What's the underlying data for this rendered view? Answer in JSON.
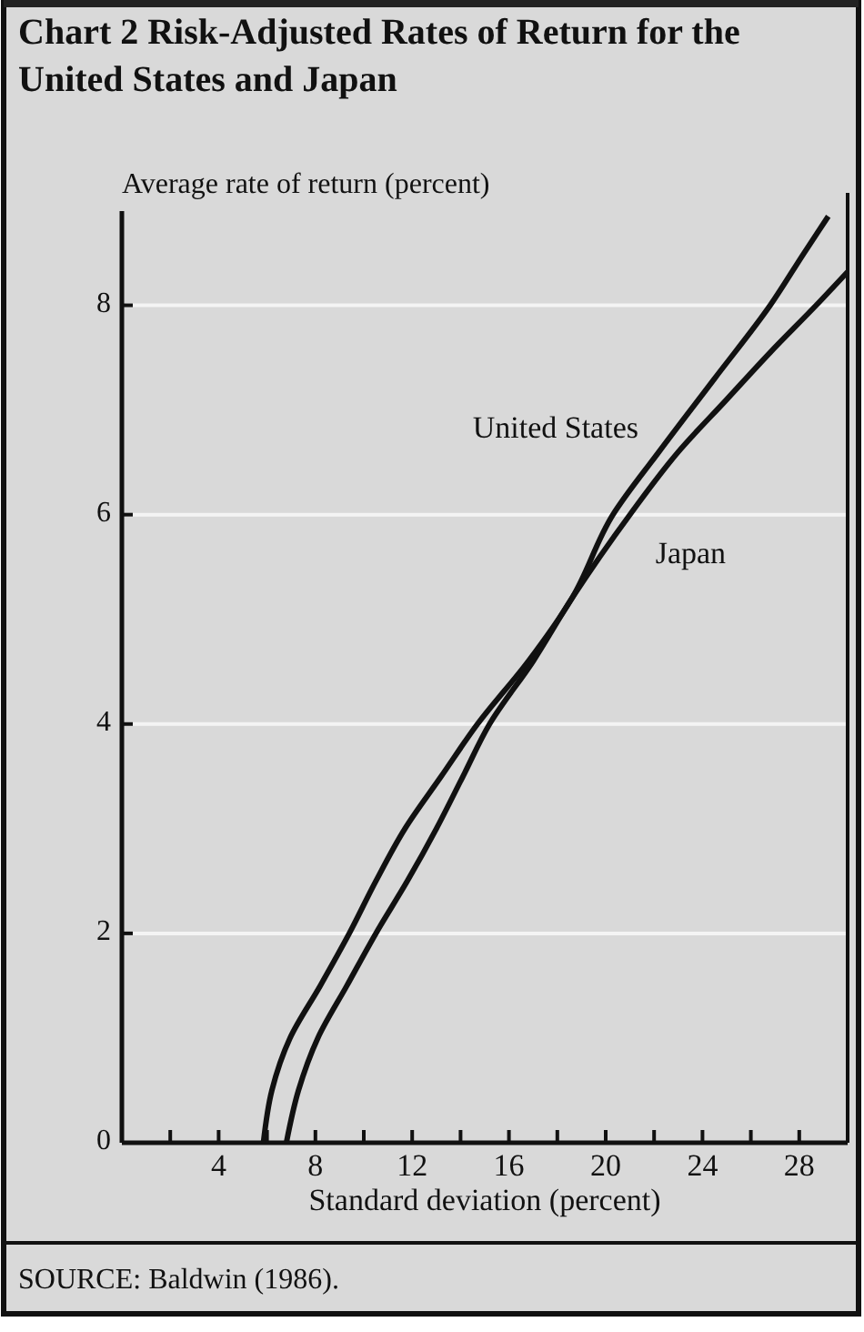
{
  "chart_data": {
    "type": "line",
    "title": "Chart 2  Risk-Adjusted Rates of Return for the United States and Japan",
    "ylabel": "Average rate of return (percent)",
    "xlabel": "Standard deviation (percent)",
    "annotations": [
      "SOURCE: Baldwin (1986)."
    ],
    "xlim": [
      0,
      30
    ],
    "ylim": [
      0,
      8.9
    ],
    "xticks": [
      {
        "value": 2,
        "label": null
      },
      4,
      {
        "value": 6,
        "label": null
      },
      8,
      {
        "value": 10,
        "label": null
      },
      12,
      {
        "value": 14,
        "label": null
      },
      16,
      {
        "value": 18,
        "label": null
      },
      20,
      {
        "value": 22,
        "label": null
      },
      24,
      {
        "value": 26,
        "label": null
      },
      28
    ],
    "yticks": [
      0,
      2,
      4,
      6,
      8
    ],
    "grid": "y",
    "marker": "none",
    "line_style": "solid",
    "series": [
      {
        "name": "United States",
        "color": "#111111",
        "x": [
          5.85,
          6.2,
          6.95,
          8.2,
          9.4,
          10.5,
          11.7,
          13.2,
          14.7,
          16.8,
          18.6,
          20.3,
          22.2,
          24.5,
          26.8,
          28.2,
          29.2
        ],
        "values": [
          0,
          0.5,
          1,
          1.5,
          2,
          2.5,
          3,
          3.5,
          4,
          4.6,
          5.2,
          6,
          6.6,
          7.3,
          8,
          8.5,
          8.85
        ]
      },
      {
        "name": "Japan",
        "color": "#111111",
        "x": [
          6.8,
          7.3,
          8.1,
          9.3,
          10.5,
          11.8,
          13,
          14.1,
          15.2,
          17,
          18.6,
          21,
          23,
          25,
          26.8,
          28.7,
          30
        ],
        "values": [
          0,
          0.5,
          1,
          1.5,
          2,
          2.5,
          3,
          3.5,
          4,
          4.6,
          5.2,
          6,
          6.6,
          7.1,
          7.55,
          8,
          8.32
        ]
      }
    ]
  }
}
